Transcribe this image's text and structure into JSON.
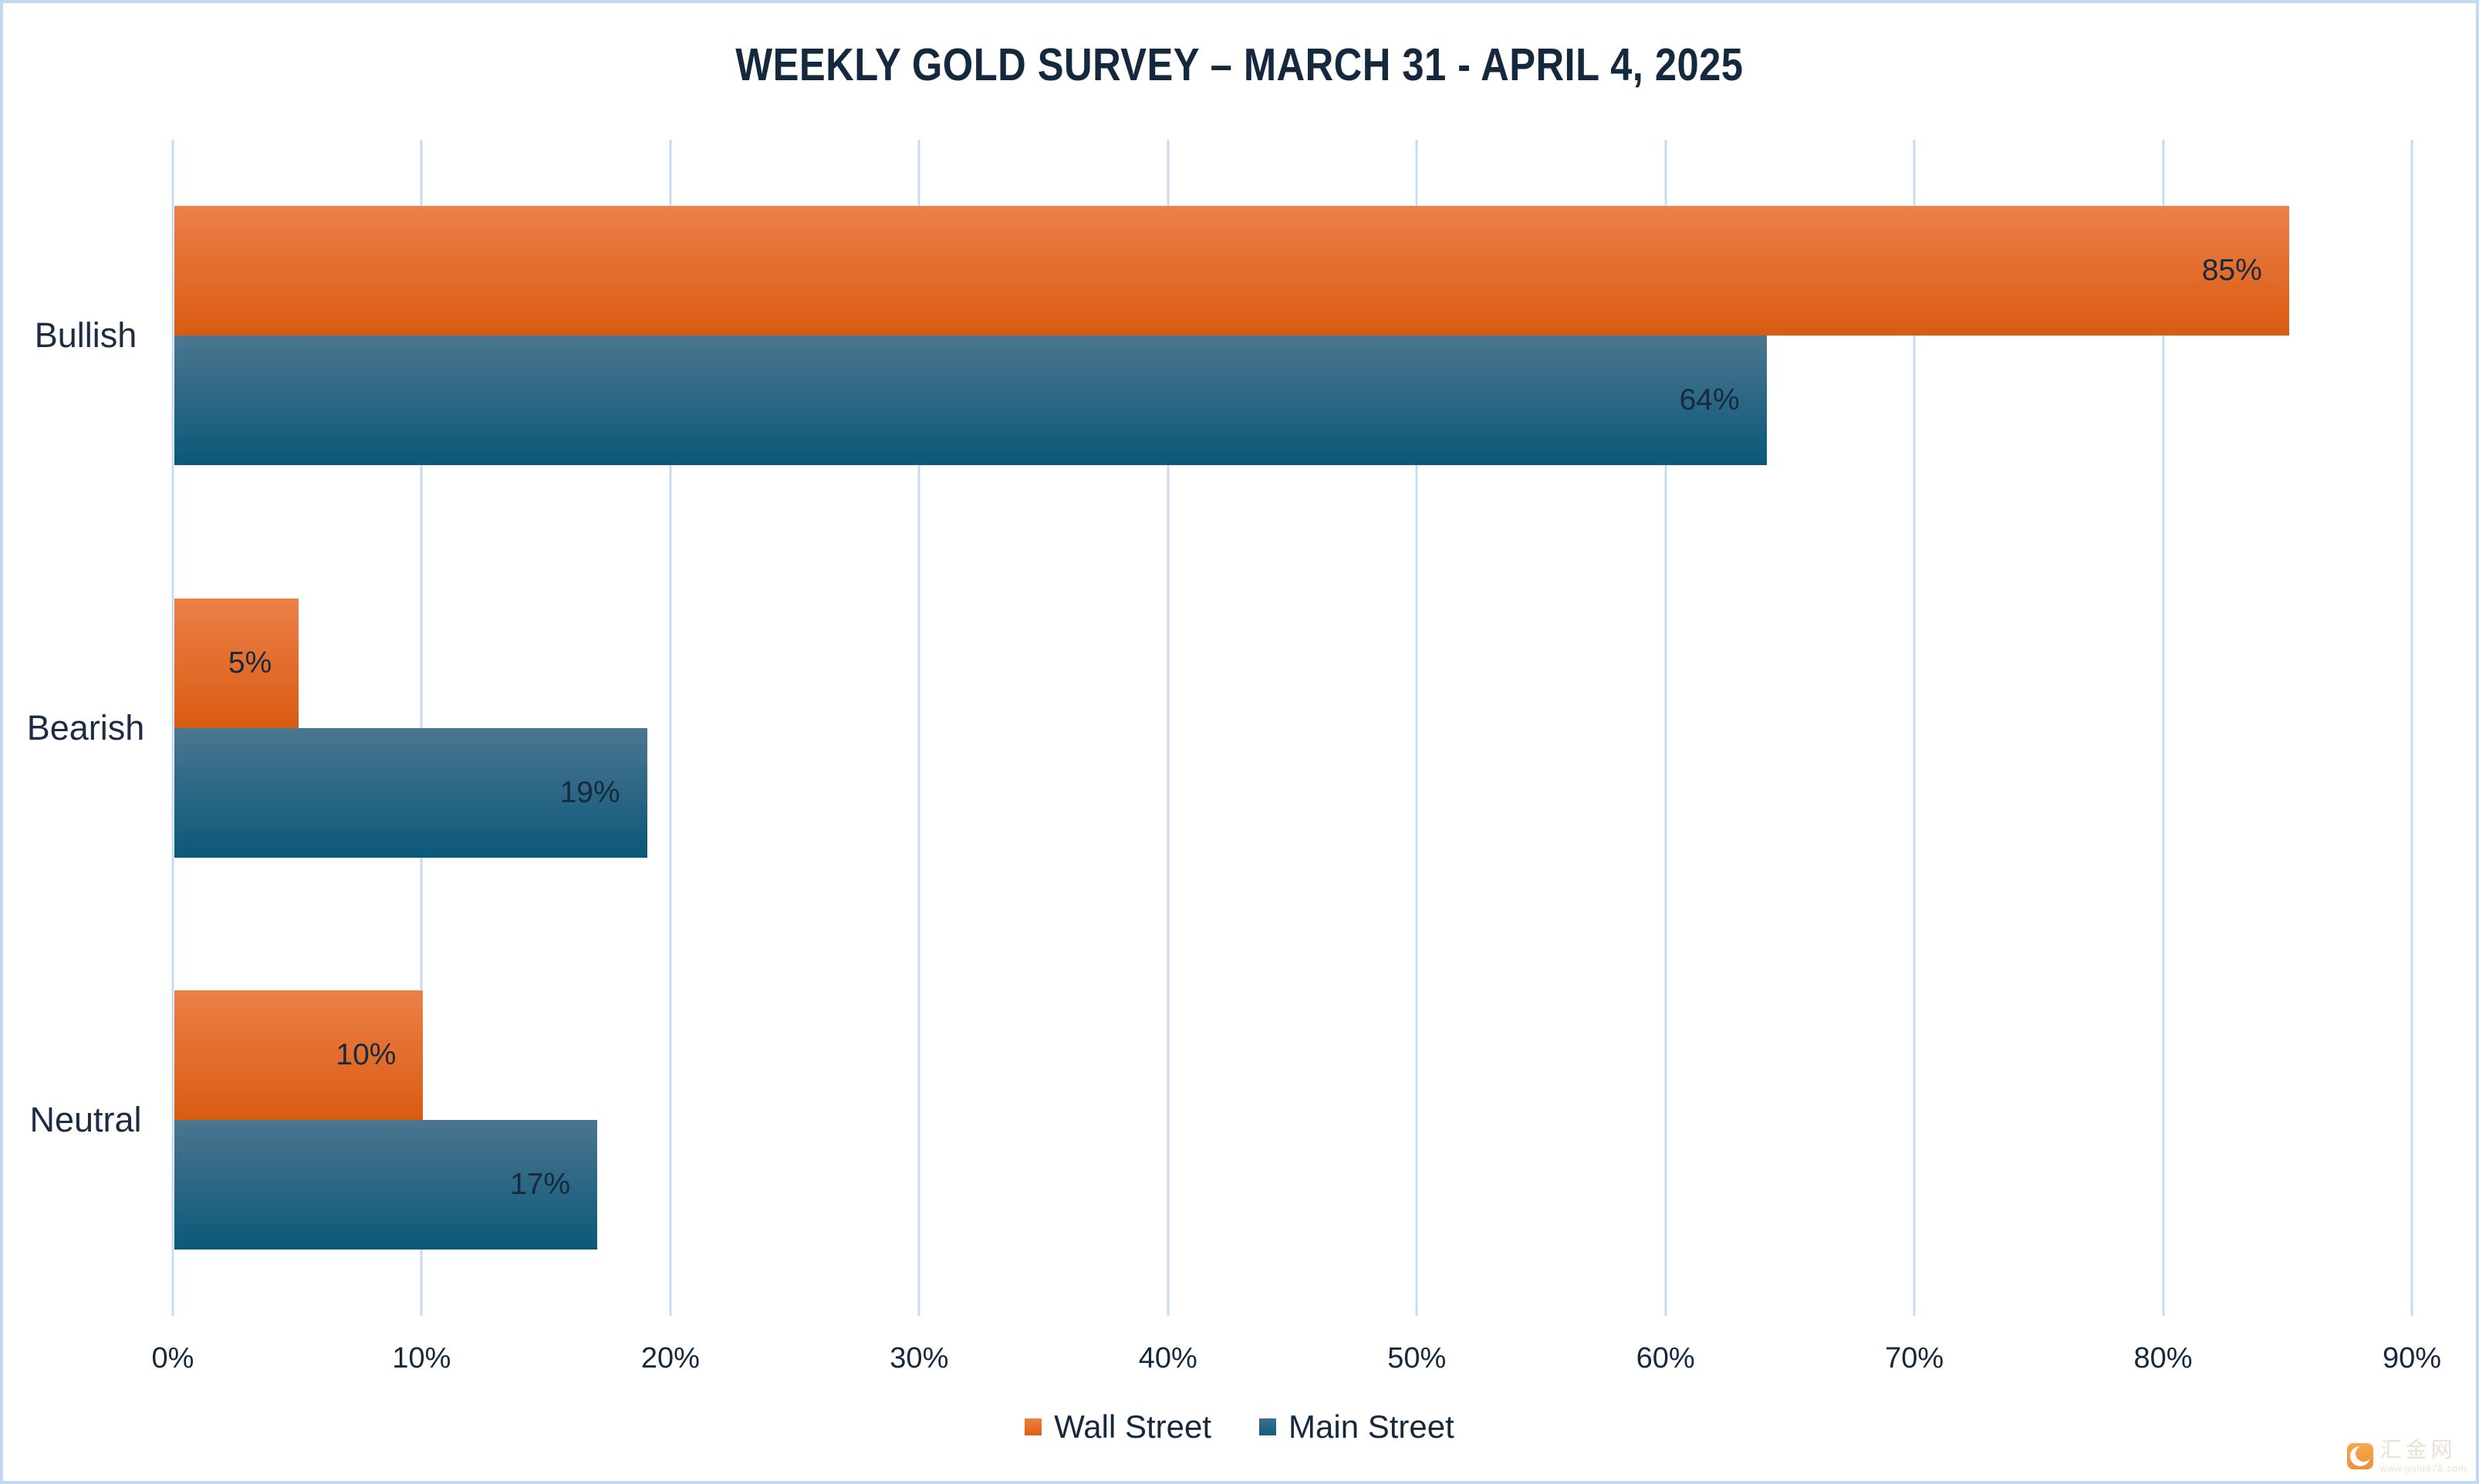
{
  "title": "WEEKLY GOLD SURVEY – MARCH 31 - APRIL 4, 2025",
  "chart_data": {
    "type": "bar",
    "orientation": "horizontal",
    "title": "WEEKLY GOLD SURVEY – MARCH 31 - APRIL 4, 2025",
    "categories": [
      "Bullish",
      "Bearish",
      "Neutral"
    ],
    "series": [
      {
        "name": "Wall Street",
        "values": [
          85,
          5,
          10
        ],
        "color_top": "#EC8048",
        "color_bottom": "#D95B12",
        "legend_color_top": "#EE803E",
        "legend_color_bottom": "#DE5F12"
      },
      {
        "name": "Main Street",
        "values": [
          64,
          19,
          17
        ],
        "color_top": "#4B7690",
        "color_bottom": "#0B5878",
        "legend_color_top": "#3C7090",
        "legend_color_bottom": "#135C7E"
      }
    ],
    "value_suffix": "%",
    "xlim": [
      0,
      90
    ],
    "x_tick_step": 10,
    "x_tick_labels": [
      "0%",
      "10%",
      "20%",
      "30%",
      "40%",
      "50%",
      "60%",
      "70%",
      "80%",
      "90%"
    ],
    "grid": "vertical",
    "legend_position": "bottom-center",
    "data_label_position": "inside-end"
  },
  "colors": {
    "gridline": "#C7DCF2",
    "page_border": "#C3D9F2",
    "title_text": "#14293E",
    "axis_text": "#15293E",
    "data_label_text": "#17293E"
  },
  "watermark": {
    "site_name": "汇金网",
    "site_url": "www.gold678.com",
    "icon": "crescent-logo-icon"
  }
}
